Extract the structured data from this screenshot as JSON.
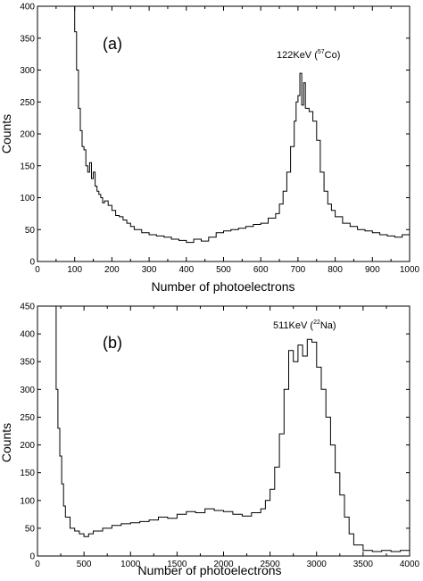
{
  "chart_data": [
    {
      "type": "line",
      "panel_label": "(a)",
      "annotation": {
        "prefix": "122KeV (",
        "sup": "57",
        "suffix": "Co)"
      },
      "xlabel": "Number of photoelectrons",
      "ylabel": "Counts",
      "xlim": [
        0,
        1000
      ],
      "ylim": [
        0,
        400
      ],
      "xticks": [
        0,
        100,
        200,
        300,
        400,
        500,
        600,
        700,
        800,
        900,
        1000
      ],
      "yticks": [
        0,
        50,
        100,
        150,
        200,
        250,
        300,
        350,
        400
      ],
      "grid": false,
      "style": "step",
      "x": [
        95,
        100,
        105,
        110,
        115,
        120,
        125,
        130,
        135,
        140,
        145,
        150,
        155,
        160,
        165,
        170,
        175,
        180,
        190,
        200,
        210,
        220,
        230,
        240,
        250,
        260,
        280,
        300,
        320,
        340,
        360,
        380,
        400,
        420,
        440,
        460,
        480,
        500,
        520,
        540,
        560,
        580,
        600,
        620,
        640,
        650,
        660,
        670,
        680,
        690,
        695,
        700,
        705,
        710,
        715,
        720,
        725,
        730,
        740,
        750,
        760,
        770,
        780,
        790,
        800,
        820,
        840,
        860,
        880,
        900,
        920,
        940,
        960,
        980,
        1000
      ],
      "y": [
        400,
        360,
        300,
        240,
        205,
        180,
        175,
        150,
        140,
        155,
        130,
        140,
        118,
        110,
        105,
        100,
        92,
        95,
        88,
        80,
        72,
        70,
        65,
        60,
        55,
        50,
        45,
        42,
        40,
        38,
        35,
        33,
        30,
        35,
        32,
        38,
        45,
        48,
        50,
        52,
        55,
        58,
        60,
        68,
        75,
        90,
        110,
        140,
        180,
        220,
        250,
        260,
        295,
        245,
        280,
        240,
        240,
        235,
        220,
        190,
        140,
        110,
        90,
        80,
        70,
        60,
        55,
        50,
        48,
        45,
        42,
        40,
        38,
        42,
        40
      ]
    },
    {
      "type": "line",
      "panel_label": "(b)",
      "annotation": {
        "prefix": "511KeV (",
        "sup": "22",
        "suffix": "Na)"
      },
      "xlabel": "Number of photoelectrons",
      "ylabel": "Counts",
      "xlim": [
        0,
        4000
      ],
      "ylim": [
        0,
        450
      ],
      "xticks": [
        0,
        500,
        1000,
        1500,
        2000,
        2500,
        3000,
        3500,
        4000
      ],
      "yticks": [
        0,
        50,
        100,
        150,
        200,
        250,
        300,
        350,
        400,
        450
      ],
      "grid": false,
      "style": "step",
      "x": [
        180,
        200,
        220,
        240,
        260,
        280,
        300,
        350,
        400,
        450,
        500,
        550,
        600,
        700,
        800,
        900,
        1000,
        1100,
        1200,
        1300,
        1400,
        1500,
        1600,
        1700,
        1800,
        1900,
        2000,
        2100,
        2200,
        2300,
        2400,
        2450,
        2500,
        2550,
        2600,
        2650,
        2700,
        2750,
        2800,
        2850,
        2900,
        2950,
        3000,
        3050,
        3100,
        3150,
        3200,
        3250,
        3300,
        3350,
        3400,
        3500,
        3600,
        3700,
        3800,
        3900,
        4000
      ],
      "y": [
        450,
        300,
        230,
        180,
        130,
        90,
        70,
        50,
        45,
        40,
        35,
        40,
        45,
        50,
        55,
        58,
        60,
        62,
        65,
        70,
        68,
        75,
        80,
        78,
        85,
        82,
        80,
        75,
        72,
        78,
        85,
        100,
        120,
        160,
        220,
        300,
        370,
        350,
        380,
        360,
        390,
        385,
        340,
        300,
        250,
        200,
        150,
        110,
        70,
        40,
        20,
        10,
        8,
        10,
        8,
        10,
        10
      ]
    }
  ]
}
